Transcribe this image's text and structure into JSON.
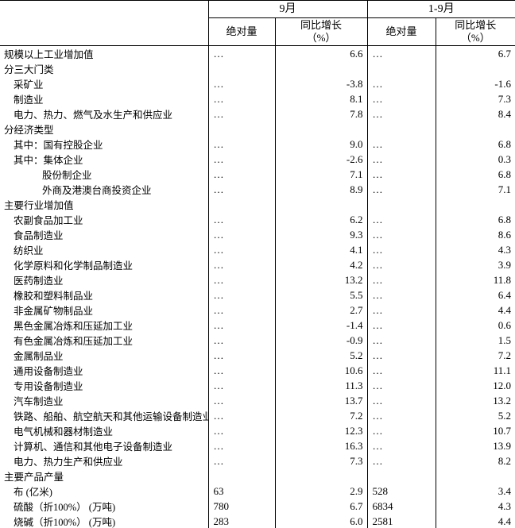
{
  "table": {
    "header": {
      "groups": [
        {
          "label": "9月"
        },
        {
          "label": "1-9月"
        }
      ],
      "subheaders": [
        {
          "line1": "绝对量",
          "line2": ""
        },
        {
          "line1": "同比增长",
          "line2": "（%）"
        },
        {
          "line1": "绝对量",
          "line2": ""
        },
        {
          "line1": "同比增长",
          "line2": "（%）"
        }
      ]
    },
    "rows": [
      {
        "label": "规模以上工业增加值",
        "indent": 0,
        "sep_abs": "…",
        "sep_growth": "6.6",
        "ytd_abs": "…",
        "ytd_growth": "6.7"
      },
      {
        "label": "分三大门类",
        "indent": 0,
        "sep_abs": "",
        "sep_growth": "",
        "ytd_abs": "",
        "ytd_growth": ""
      },
      {
        "label": "采矿业",
        "indent": 1,
        "sep_abs": "…",
        "sep_growth": "-3.8",
        "ytd_abs": "…",
        "ytd_growth": "-1.6"
      },
      {
        "label": "制造业",
        "indent": 1,
        "sep_abs": "…",
        "sep_growth": "8.1",
        "ytd_abs": "…",
        "ytd_growth": "7.3"
      },
      {
        "label": "电力、热力、燃气及水生产和供应业",
        "indent": 1,
        "sep_abs": "…",
        "sep_growth": "7.8",
        "ytd_abs": "…",
        "ytd_growth": "8.4"
      },
      {
        "label": "分经济类型",
        "indent": 0,
        "sep_abs": "",
        "sep_growth": "",
        "ytd_abs": "",
        "ytd_growth": ""
      },
      {
        "label": "其中：国有控股企业",
        "indent": 1,
        "sep_abs": "…",
        "sep_growth": "9.0",
        "ytd_abs": "…",
        "ytd_growth": "6.8"
      },
      {
        "label": "其中：集体企业",
        "indent": 1,
        "sep_abs": "…",
        "sep_growth": "-2.6",
        "ytd_abs": "…",
        "ytd_growth": "0.3"
      },
      {
        "label": "股份制企业",
        "indent": 2,
        "sep_abs": "…",
        "sep_growth": "7.1",
        "ytd_abs": "…",
        "ytd_growth": "6.8"
      },
      {
        "label": "外商及港澳台商投资企业",
        "indent": 2,
        "sep_abs": "…",
        "sep_growth": "8.9",
        "ytd_abs": "…",
        "ytd_growth": "7.1"
      },
      {
        "label": "主要行业增加值",
        "indent": 0,
        "sep_abs": "",
        "sep_growth": "",
        "ytd_abs": "",
        "ytd_growth": ""
      },
      {
        "label": "农副食品加工业",
        "indent": 1,
        "sep_abs": "…",
        "sep_growth": "6.2",
        "ytd_abs": "…",
        "ytd_growth": "6.8"
      },
      {
        "label": "食品制造业",
        "indent": 1,
        "sep_abs": "…",
        "sep_growth": "9.3",
        "ytd_abs": "…",
        "ytd_growth": "8.6"
      },
      {
        "label": "纺织业",
        "indent": 1,
        "sep_abs": "…",
        "sep_growth": "4.1",
        "ytd_abs": "…",
        "ytd_growth": "4.3"
      },
      {
        "label": "化学原料和化学制品制造业",
        "indent": 1,
        "sep_abs": "…",
        "sep_growth": "4.2",
        "ytd_abs": "…",
        "ytd_growth": "3.9"
      },
      {
        "label": "医药制造业",
        "indent": 1,
        "sep_abs": "…",
        "sep_growth": "13.2",
        "ytd_abs": "…",
        "ytd_growth": "11.8"
      },
      {
        "label": "橡胶和塑料制品业",
        "indent": 1,
        "sep_abs": "…",
        "sep_growth": "5.5",
        "ytd_abs": "…",
        "ytd_growth": "6.4"
      },
      {
        "label": "非金属矿物制品业",
        "indent": 1,
        "sep_abs": "…",
        "sep_growth": "2.7",
        "ytd_abs": "…",
        "ytd_growth": "4.4"
      },
      {
        "label": "黑色金属冶炼和压延加工业",
        "indent": 1,
        "sep_abs": "…",
        "sep_growth": "-1.4",
        "ytd_abs": "…",
        "ytd_growth": "0.6"
      },
      {
        "label": "有色金属冶炼和压延加工业",
        "indent": 1,
        "sep_abs": "…",
        "sep_growth": "-0.9",
        "ytd_abs": "…",
        "ytd_growth": "1.5"
      },
      {
        "label": "金属制品业",
        "indent": 1,
        "sep_abs": "…",
        "sep_growth": "5.2",
        "ytd_abs": "…",
        "ytd_growth": "7.2"
      },
      {
        "label": "通用设备制造业",
        "indent": 1,
        "sep_abs": "…",
        "sep_growth": "10.6",
        "ytd_abs": "…",
        "ytd_growth": "11.1"
      },
      {
        "label": "专用设备制造业",
        "indent": 1,
        "sep_abs": "…",
        "sep_growth": "11.3",
        "ytd_abs": "…",
        "ytd_growth": "12.0"
      },
      {
        "label": "汽车制造业",
        "indent": 1,
        "sep_abs": "…",
        "sep_growth": "13.7",
        "ytd_abs": "…",
        "ytd_growth": "13.2"
      },
      {
        "label": "铁路、船舶、航空航天和其他运输设备制造业",
        "indent": 1,
        "sep_abs": "…",
        "sep_growth": "7.2",
        "ytd_abs": "…",
        "ytd_growth": "5.2"
      },
      {
        "label": "电气机械和器材制造业",
        "indent": 1,
        "sep_abs": "…",
        "sep_growth": "12.3",
        "ytd_abs": "…",
        "ytd_growth": "10.7"
      },
      {
        "label": "计算机、通信和其他电子设备制造业",
        "indent": 1,
        "sep_abs": "…",
        "sep_growth": "16.3",
        "ytd_abs": "…",
        "ytd_growth": "13.9"
      },
      {
        "label": "电力、热力生产和供应业",
        "indent": 1,
        "sep_abs": "…",
        "sep_growth": "7.3",
        "ytd_abs": "…",
        "ytd_growth": "8.2"
      },
      {
        "label": "主要产品产量",
        "indent": 0,
        "sep_abs": "",
        "sep_growth": "",
        "ytd_abs": "",
        "ytd_growth": ""
      },
      {
        "label": "布 (亿米)",
        "indent": 1,
        "sep_abs": "63",
        "sep_growth": "2.9",
        "ytd_abs": "528",
        "ytd_growth": "3.4"
      },
      {
        "label": "硫酸（折100%） (万吨)",
        "indent": 1,
        "sep_abs": "780",
        "sep_growth": "6.7",
        "ytd_abs": "6834",
        "ytd_growth": "4.3"
      },
      {
        "label": "烧碱（折100%） (万吨)",
        "indent": 1,
        "sep_abs": "283",
        "sep_growth": "6.0",
        "ytd_abs": "2581",
        "ytd_growth": "4.4"
      }
    ],
    "colors": {
      "border": "#000000",
      "text": "#000000",
      "background": "#ffffff"
    }
  }
}
